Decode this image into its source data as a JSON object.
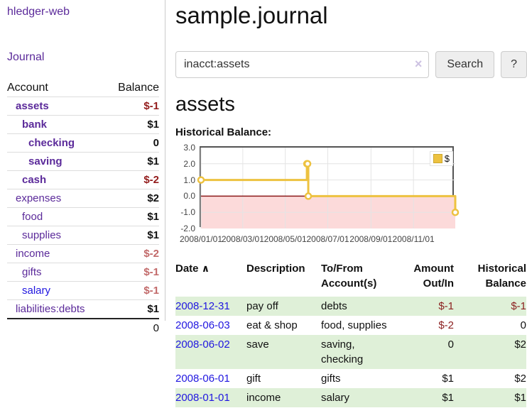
{
  "app_title": "hledger-web",
  "sidebar": {
    "journal_link": "Journal",
    "accounts": {
      "col_account": "Account",
      "col_balance": "Balance",
      "rows": [
        {
          "name": "assets",
          "balance": "$-1"
        },
        {
          "name": "bank",
          "balance": "$1"
        },
        {
          "name": "checking",
          "balance": "0"
        },
        {
          "name": "saving",
          "balance": "$1"
        },
        {
          "name": "cash",
          "balance": "$-2"
        },
        {
          "name": "expenses",
          "balance": "$2"
        },
        {
          "name": "food",
          "balance": "$1"
        },
        {
          "name": "supplies",
          "balance": "$1"
        },
        {
          "name": "income",
          "balance": "$-2"
        },
        {
          "name": "gifts",
          "balance": "$-1"
        },
        {
          "name": "salary",
          "balance": "$-1"
        },
        {
          "name": "liabilities:debts",
          "balance": "$1"
        }
      ],
      "total": "0"
    }
  },
  "main": {
    "title": "sample.journal",
    "search": {
      "value": "inacct:assets",
      "clear_icon": "×",
      "search_button": "Search",
      "help_button": "?"
    },
    "account_heading": "assets",
    "chart_heading": "Historical Balance:"
  },
  "chart_data": {
    "type": "line",
    "step": true,
    "title": "Historical Balance:",
    "x_type": "date",
    "xrange": [
      "2008-01-01",
      "2008-12-31"
    ],
    "ylim": [
      -2,
      3
    ],
    "xticks": [
      "2008/01/01",
      "2008/03/01",
      "2008/05/01",
      "2008/07/01",
      "2008/09/01",
      "2008/11/01"
    ],
    "yticks": [
      "3.0",
      "2.0",
      "1.0",
      "0.0",
      "-1.0",
      "-2.0"
    ],
    "grid": true,
    "legend": {
      "label": "$",
      "position": "top-right",
      "swatch_color": "#edc240"
    },
    "series": [
      {
        "name": "$",
        "color": "#edc240",
        "marker": "circle",
        "points": [
          {
            "x": "2008-01-01",
            "y": 1
          },
          {
            "x": "2008-06-01",
            "y": 2
          },
          {
            "x": "2008-06-02",
            "y": 2
          },
          {
            "x": "2008-06-03",
            "y": 0
          },
          {
            "x": "2008-12-31",
            "y": -1
          }
        ]
      }
    ],
    "negative_fill": "#fcdada",
    "zero_line_color": "#8b1a1a"
  },
  "register": {
    "headers": {
      "date": "Date",
      "sort_indicator": "∧",
      "description": "Description",
      "accounts": "To/From Account(s)",
      "amount": "Amount Out/In",
      "balance": "Historical Balance"
    },
    "rows": [
      {
        "date": "2008-12-31",
        "description": "pay off",
        "accounts": "debts",
        "amount": "$-1",
        "balance": "$-1"
      },
      {
        "date": "2008-06-03",
        "description": "eat & shop",
        "accounts": "food, supplies",
        "amount": "$-2",
        "balance": "0"
      },
      {
        "date": "2008-06-02",
        "description": "save",
        "accounts": "saving, checking",
        "amount": "0",
        "balance": "$2"
      },
      {
        "date": "2008-06-01",
        "description": "gift",
        "accounts": "gifts",
        "amount": "$1",
        "balance": "$2"
      },
      {
        "date": "2008-01-01",
        "description": "income",
        "accounts": "salary",
        "amount": "$1",
        "balance": "$1"
      }
    ]
  }
}
